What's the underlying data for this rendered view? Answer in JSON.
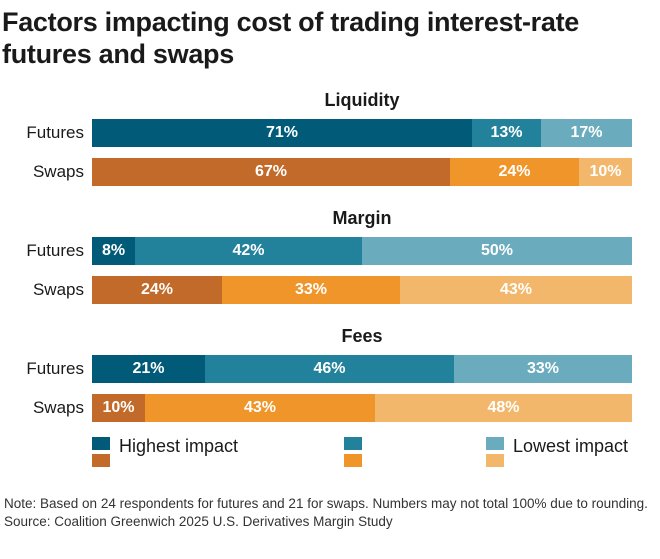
{
  "title": "Factors impacting cost of trading interest-rate futures and swaps",
  "colors": {
    "futures": [
      "#005a78",
      "#22819b",
      "#6aabbd"
    ],
    "swaps": [
      "#c26a29",
      "#f0952a",
      "#f3b76c"
    ]
  },
  "chart_data": {
    "type": "bar",
    "orientation": "horizontal",
    "stacked": true,
    "panels": [
      {
        "title": "Liquidity",
        "rows": [
          {
            "label": "Futures",
            "values": [
              71,
              13,
              17
            ]
          },
          {
            "label": "Swaps",
            "values": [
              67,
              24,
              10
            ]
          }
        ]
      },
      {
        "title": "Margin",
        "rows": [
          {
            "label": "Futures",
            "values": [
              8,
              42,
              50
            ]
          },
          {
            "label": "Swaps",
            "values": [
              24,
              33,
              43
            ]
          }
        ]
      },
      {
        "title": "Fees",
        "rows": [
          {
            "label": "Futures",
            "values": [
              21,
              46,
              33
            ]
          },
          {
            "label": "Swaps",
            "values": [
              10,
              43,
              48
            ]
          }
        ]
      }
    ],
    "legend": {
      "placement": "bottom",
      "labels": [
        "Highest impact",
        "",
        "Lowest impact"
      ]
    }
  },
  "note": "Note: Based on 24 respondents for futures and 21 for swaps. Numbers may not total 100% due to rounding.",
  "source": "Source: Coalition Greenwich 2025 U.S. Derivatives Margin Study"
}
